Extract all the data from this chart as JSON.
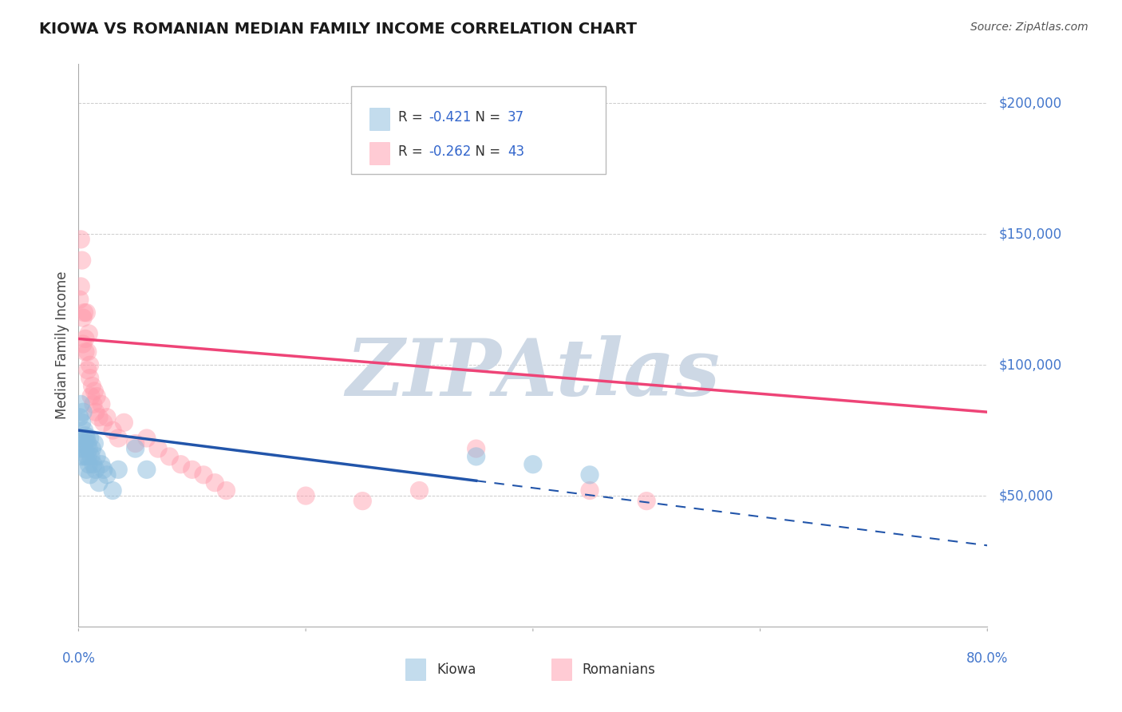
{
  "title": "KIOWA VS ROMANIAN MEDIAN FAMILY INCOME CORRELATION CHART",
  "source": "Source: ZipAtlas.com",
  "ylabel": "Median Family Income",
  "yticks": [
    0,
    50000,
    100000,
    150000,
    200000
  ],
  "ytick_labels": [
    "",
    "$50,000",
    "$100,000",
    "$150,000",
    "$200,000"
  ],
  "xtick_positions": [
    0.0,
    0.2,
    0.4,
    0.6,
    0.8
  ],
  "xtick_labels": [
    "0.0%",
    "",
    "",
    "",
    "80.0%"
  ],
  "xmin": 0.0,
  "xmax": 0.8,
  "ymin": 0,
  "ymax": 215000,
  "kiowa_color": "#88bbdd",
  "kiowa_line_color": "#2255aa",
  "romanian_color": "#ff99aa",
  "romanian_line_color": "#ee4477",
  "kiowa_R": -0.421,
  "kiowa_N": 37,
  "romanian_R": -0.262,
  "romanian_N": 43,
  "r_color": "#3366cc",
  "n_color": "#3366cc",
  "kiowa_x": [
    0.001,
    0.001,
    0.002,
    0.002,
    0.003,
    0.003,
    0.004,
    0.004,
    0.005,
    0.005,
    0.006,
    0.006,
    0.007,
    0.007,
    0.008,
    0.008,
    0.009,
    0.009,
    0.01,
    0.01,
    0.011,
    0.012,
    0.013,
    0.014,
    0.015,
    0.016,
    0.018,
    0.02,
    0.022,
    0.025,
    0.03,
    0.035,
    0.05,
    0.06,
    0.35,
    0.4,
    0.45
  ],
  "kiowa_y": [
    80000,
    72000,
    85000,
    68000,
    78000,
    65000,
    82000,
    70000,
    75000,
    68000,
    73000,
    65000,
    72000,
    60000,
    70000,
    65000,
    68000,
    62000,
    72000,
    58000,
    65000,
    68000,
    62000,
    70000,
    60000,
    65000,
    55000,
    62000,
    60000,
    58000,
    52000,
    60000,
    68000,
    60000,
    65000,
    62000,
    58000
  ],
  "romanian_x": [
    0.001,
    0.002,
    0.002,
    0.003,
    0.004,
    0.004,
    0.005,
    0.006,
    0.006,
    0.007,
    0.008,
    0.008,
    0.009,
    0.01,
    0.01,
    0.011,
    0.012,
    0.013,
    0.014,
    0.015,
    0.016,
    0.018,
    0.02,
    0.022,
    0.025,
    0.03,
    0.035,
    0.04,
    0.05,
    0.06,
    0.07,
    0.08,
    0.09,
    0.1,
    0.11,
    0.12,
    0.13,
    0.2,
    0.25,
    0.3,
    0.35,
    0.45,
    0.5
  ],
  "romanian_y": [
    125000,
    148000,
    130000,
    140000,
    118000,
    108000,
    120000,
    105000,
    110000,
    120000,
    98000,
    105000,
    112000,
    95000,
    100000,
    88000,
    92000,
    85000,
    90000,
    82000,
    88000,
    80000,
    85000,
    78000,
    80000,
    75000,
    72000,
    78000,
    70000,
    72000,
    68000,
    65000,
    62000,
    60000,
    58000,
    55000,
    52000,
    50000,
    48000,
    52000,
    68000,
    52000,
    48000
  ],
  "kiowa_trend": [
    -55000,
    75000
  ],
  "romanian_trend": [
    -35000,
    110000
  ],
  "watermark_text": "ZIPAtlas",
  "watermark_color": "#cdd8e5",
  "grid_color": "#cccccc",
  "background_color": "#ffffff",
  "tick_color": "#4477cc"
}
